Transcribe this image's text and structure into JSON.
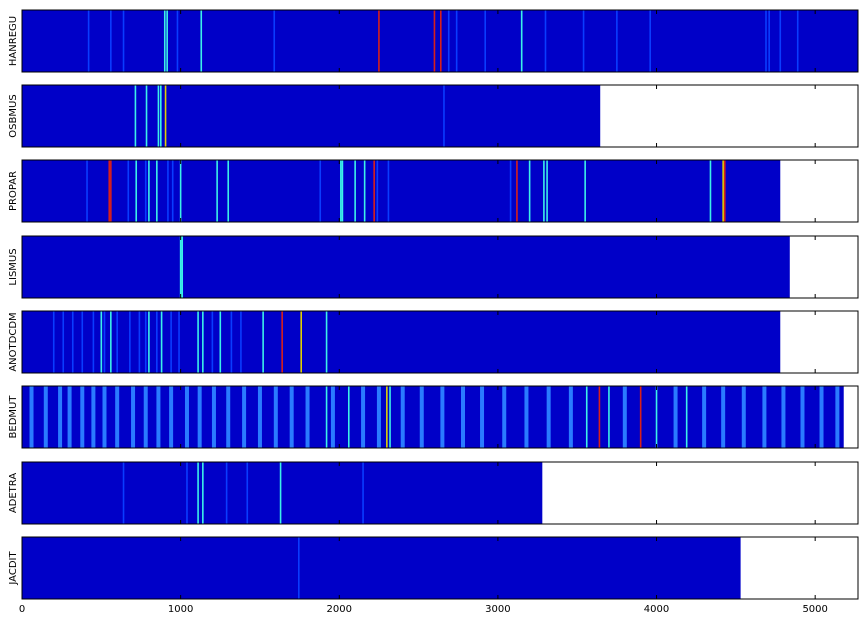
{
  "chart_data": {
    "type": "heatmap",
    "title": "",
    "xlabel": "",
    "xlim": [
      0,
      5270
    ],
    "x_ticks": [
      0,
      1000,
      2000,
      3000,
      4000,
      5000
    ],
    "x_tick_labels": [
      "0",
      "1000",
      "2000",
      "3000",
      "4000",
      "5000"
    ],
    "grid": false,
    "legend": "none",
    "colormap": "jet",
    "colors": {
      "base": "#0000c8",
      "light_blue": "#0a3cff",
      "mid_blue": "#2a7cff",
      "cyan": "#3cf0e8",
      "yellow": "#e0d000",
      "red": "#d8201a"
    },
    "tracks": [
      {
        "label": "HANREGU",
        "length": 5270,
        "marks": [
          {
            "x": 420,
            "level": "light_blue"
          },
          {
            "x": 560,
            "level": "light_blue"
          },
          {
            "x": 640,
            "level": "light_blue"
          },
          {
            "x": 900,
            "level": "cyan"
          },
          {
            "x": 915,
            "level": "cyan"
          },
          {
            "x": 980,
            "level": "light_blue"
          },
          {
            "x": 1130,
            "level": "cyan"
          },
          {
            "x": 1590,
            "level": "light_blue"
          },
          {
            "x": 2250,
            "level": "red"
          },
          {
            "x": 2600,
            "level": "red"
          },
          {
            "x": 2640,
            "level": "red"
          },
          {
            "x": 2690,
            "level": "light_blue"
          },
          {
            "x": 2740,
            "level": "light_blue"
          },
          {
            "x": 2920,
            "level": "light_blue"
          },
          {
            "x": 3150,
            "level": "cyan"
          },
          {
            "x": 3300,
            "level": "light_blue"
          },
          {
            "x": 3540,
            "level": "light_blue"
          },
          {
            "x": 3750,
            "level": "light_blue"
          },
          {
            "x": 3960,
            "level": "light_blue"
          },
          {
            "x": 4690,
            "level": "light_blue"
          },
          {
            "x": 4710,
            "level": "light_blue"
          },
          {
            "x": 4780,
            "level": "light_blue"
          },
          {
            "x": 4890,
            "level": "light_blue"
          }
        ]
      },
      {
        "label": "OSBMUS",
        "length": 3645,
        "marks": [
          {
            "x": 715,
            "level": "cyan"
          },
          {
            "x": 785,
            "level": "cyan"
          },
          {
            "x": 860,
            "level": "cyan"
          },
          {
            "x": 875,
            "level": "cyan"
          },
          {
            "x": 905,
            "level": "yellow"
          },
          {
            "x": 2660,
            "level": "light_blue"
          }
        ]
      },
      {
        "label": "PROPAR",
        "length": 4780,
        "marks": [
          {
            "x": 410,
            "level": "light_blue"
          },
          {
            "x": 550,
            "level": "red"
          },
          {
            "x": 560,
            "level": "red"
          },
          {
            "x": 670,
            "level": "light_blue"
          },
          {
            "x": 720,
            "level": "cyan"
          },
          {
            "x": 780,
            "level": "light_blue"
          },
          {
            "x": 800,
            "level": "cyan"
          },
          {
            "x": 850,
            "level": "cyan"
          },
          {
            "x": 920,
            "level": "light_blue"
          },
          {
            "x": 950,
            "level": "light_blue"
          },
          {
            "x": 1000,
            "level": "cyan"
          },
          {
            "x": 1230,
            "level": "cyan"
          },
          {
            "x": 1300,
            "level": "cyan"
          },
          {
            "x": 1880,
            "level": "light_blue"
          },
          {
            "x": 2010,
            "level": "cyan"
          },
          {
            "x": 2020,
            "level": "cyan"
          },
          {
            "x": 2100,
            "level": "cyan"
          },
          {
            "x": 2160,
            "level": "cyan"
          },
          {
            "x": 2220,
            "level": "red"
          },
          {
            "x": 2240,
            "level": "light_blue"
          },
          {
            "x": 2310,
            "level": "light_blue"
          },
          {
            "x": 3080,
            "level": "light_blue"
          },
          {
            "x": 3120,
            "level": "red"
          },
          {
            "x": 3200,
            "level": "cyan"
          },
          {
            "x": 3290,
            "level": "cyan"
          },
          {
            "x": 3310,
            "level": "cyan"
          },
          {
            "x": 3550,
            "level": "cyan"
          },
          {
            "x": 4340,
            "level": "cyan"
          },
          {
            "x": 4420,
            "level": "yellow"
          },
          {
            "x": 4430,
            "level": "red"
          }
        ]
      },
      {
        "label": "LISMUS",
        "length": 4840,
        "marks": [
          {
            "x": 1000,
            "level": "cyan"
          },
          {
            "x": 1010,
            "level": "cyan"
          }
        ]
      },
      {
        "label": "ANOTDCDM",
        "length": 4780,
        "marks": [
          {
            "x": 200,
            "level": "light_blue"
          },
          {
            "x": 260,
            "level": "light_blue"
          },
          {
            "x": 320,
            "level": "light_blue"
          },
          {
            "x": 380,
            "level": "light_blue"
          },
          {
            "x": 450,
            "level": "light_blue"
          },
          {
            "x": 500,
            "level": "cyan"
          },
          {
            "x": 520,
            "level": "light_blue"
          },
          {
            "x": 560,
            "level": "cyan"
          },
          {
            "x": 600,
            "level": "light_blue"
          },
          {
            "x": 680,
            "level": "light_blue"
          },
          {
            "x": 740,
            "level": "light_blue"
          },
          {
            "x": 780,
            "level": "light_blue"
          },
          {
            "x": 800,
            "level": "cyan"
          },
          {
            "x": 850,
            "level": "light_blue"
          },
          {
            "x": 880,
            "level": "cyan"
          },
          {
            "x": 940,
            "level": "light_blue"
          },
          {
            "x": 990,
            "level": "light_blue"
          },
          {
            "x": 1110,
            "level": "cyan"
          },
          {
            "x": 1140,
            "level": "cyan"
          },
          {
            "x": 1200,
            "level": "light_blue"
          },
          {
            "x": 1250,
            "level": "cyan"
          },
          {
            "x": 1320,
            "level": "light_blue"
          },
          {
            "x": 1380,
            "level": "light_blue"
          },
          {
            "x": 1520,
            "level": "cyan"
          },
          {
            "x": 1640,
            "level": "red"
          },
          {
            "x": 1760,
            "level": "yellow"
          },
          {
            "x": 1920,
            "level": "cyan"
          }
        ]
      },
      {
        "label": "BEDMUT",
        "length": 5180,
        "marks": [
          {
            "x": 60,
            "level": "mid_blue"
          },
          {
            "x": 150,
            "level": "mid_blue"
          },
          {
            "x": 240,
            "level": "mid_blue"
          },
          {
            "x": 300,
            "level": "mid_blue"
          },
          {
            "x": 380,
            "level": "mid_blue"
          },
          {
            "x": 450,
            "level": "mid_blue"
          },
          {
            "x": 520,
            "level": "mid_blue"
          },
          {
            "x": 600,
            "level": "mid_blue"
          },
          {
            "x": 700,
            "level": "mid_blue"
          },
          {
            "x": 780,
            "level": "mid_blue"
          },
          {
            "x": 860,
            "level": "mid_blue"
          },
          {
            "x": 940,
            "level": "mid_blue"
          },
          {
            "x": 1040,
            "level": "mid_blue"
          },
          {
            "x": 1120,
            "level": "mid_blue"
          },
          {
            "x": 1210,
            "level": "mid_blue"
          },
          {
            "x": 1300,
            "level": "mid_blue"
          },
          {
            "x": 1400,
            "level": "mid_blue"
          },
          {
            "x": 1500,
            "level": "mid_blue"
          },
          {
            "x": 1600,
            "level": "mid_blue"
          },
          {
            "x": 1700,
            "level": "mid_blue"
          },
          {
            "x": 1800,
            "level": "mid_blue"
          },
          {
            "x": 1920,
            "level": "cyan"
          },
          {
            "x": 1960,
            "level": "mid_blue"
          },
          {
            "x": 2060,
            "level": "cyan"
          },
          {
            "x": 2150,
            "level": "mid_blue"
          },
          {
            "x": 2250,
            "level": "mid_blue"
          },
          {
            "x": 2300,
            "level": "yellow"
          },
          {
            "x": 2320,
            "level": "cyan"
          },
          {
            "x": 2400,
            "level": "mid_blue"
          },
          {
            "x": 2520,
            "level": "mid_blue"
          },
          {
            "x": 2650,
            "level": "mid_blue"
          },
          {
            "x": 2780,
            "level": "mid_blue"
          },
          {
            "x": 2900,
            "level": "mid_blue"
          },
          {
            "x": 3040,
            "level": "mid_blue"
          },
          {
            "x": 3180,
            "level": "mid_blue"
          },
          {
            "x": 3320,
            "level": "mid_blue"
          },
          {
            "x": 3460,
            "level": "mid_blue"
          },
          {
            "x": 3560,
            "level": "cyan"
          },
          {
            "x": 3640,
            "level": "red"
          },
          {
            "x": 3700,
            "level": "cyan"
          },
          {
            "x": 3800,
            "level": "mid_blue"
          },
          {
            "x": 3900,
            "level": "red"
          },
          {
            "x": 4000,
            "level": "cyan"
          },
          {
            "x": 4120,
            "level": "mid_blue"
          },
          {
            "x": 4190,
            "level": "cyan"
          },
          {
            "x": 4300,
            "level": "mid_blue"
          },
          {
            "x": 4420,
            "level": "mid_blue"
          },
          {
            "x": 4550,
            "level": "mid_blue"
          },
          {
            "x": 4680,
            "level": "mid_blue"
          },
          {
            "x": 4800,
            "level": "mid_blue"
          },
          {
            "x": 4920,
            "level": "mid_blue"
          },
          {
            "x": 5040,
            "level": "mid_blue"
          },
          {
            "x": 5140,
            "level": "mid_blue"
          }
        ]
      },
      {
        "label": "ADETRA",
        "length": 3280,
        "marks": [
          {
            "x": 640,
            "level": "light_blue"
          },
          {
            "x": 1040,
            "level": "light_blue"
          },
          {
            "x": 1110,
            "level": "cyan"
          },
          {
            "x": 1140,
            "level": "cyan"
          },
          {
            "x": 1290,
            "level": "light_blue"
          },
          {
            "x": 1420,
            "level": "light_blue"
          },
          {
            "x": 1630,
            "level": "cyan"
          },
          {
            "x": 2150,
            "level": "light_blue"
          }
        ]
      },
      {
        "label": "JACDIT",
        "length": 4530,
        "marks": [
          {
            "x": 1745,
            "level": "light_blue"
          }
        ]
      }
    ]
  }
}
